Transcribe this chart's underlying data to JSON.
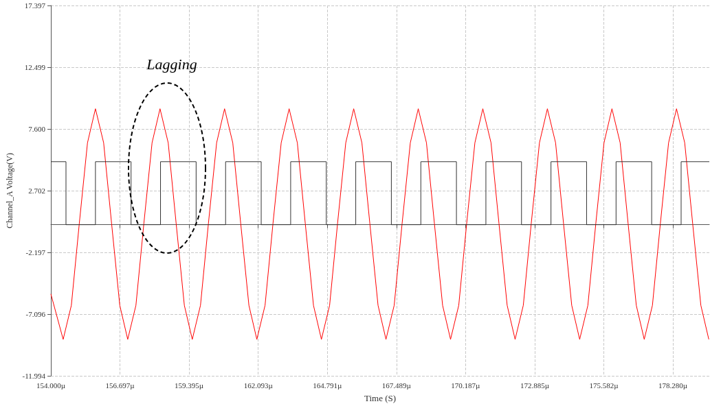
{
  "chart_data": {
    "type": "line",
    "xlabel": "Time (S)",
    "ylabel": "Channel_A Voltage(V)",
    "xlim": [
      154,
      179.7
    ],
    "ylim": [
      -11.994,
      17.397
    ],
    "xticks": [
      {
        "value": 154,
        "label": "154.000µ"
      },
      {
        "value": 156.697,
        "label": "156.697µ"
      },
      {
        "value": 159.395,
        "label": "159.395µ"
      },
      {
        "value": 162.093,
        "label": "162.093µ"
      },
      {
        "value": 164.791,
        "label": "164.791µ"
      },
      {
        "value": 167.489,
        "label": "167.489µ"
      },
      {
        "value": 170.187,
        "label": "170.187µ"
      },
      {
        "value": 172.885,
        "label": "172.885µ"
      },
      {
        "value": 175.582,
        "label": "175.582µ"
      },
      {
        "value": 178.28,
        "label": "178.280µ"
      }
    ],
    "yticks": [
      {
        "value": -11.994,
        "label": "-11.994"
      },
      {
        "value": -7.096,
        "label": "-7.096"
      },
      {
        "value": -2.197,
        "label": "-2.197"
      },
      {
        "value": 2.702,
        "label": "2.702"
      },
      {
        "value": 7.6,
        "label": "7.600"
      },
      {
        "value": 12.499,
        "label": "12.499"
      },
      {
        "value": 17.397,
        "label": "17.397"
      }
    ],
    "grid": true,
    "annotations": [
      "Lagging"
    ],
    "series": [
      {
        "color": "#ff0000",
        "x": [
          154.0,
          154.48,
          154.8,
          155.11,
          155.43,
          155.74,
          156.06,
          156.37,
          156.69,
          157.0,
          157.32,
          157.63,
          157.95,
          158.26,
          158.58,
          158.89,
          159.21,
          159.52,
          159.84,
          160.15,
          160.47,
          160.78,
          161.1,
          161.41,
          161.73,
          162.04,
          162.36,
          162.67,
          162.99,
          163.3,
          163.62,
          163.93,
          164.25,
          164.56,
          164.88,
          165.19,
          165.51,
          165.82,
          166.14,
          166.45,
          166.77,
          167.08,
          167.4,
          167.71,
          168.03,
          168.34,
          168.66,
          168.97,
          169.29,
          169.6,
          169.92,
          170.23,
          170.55,
          170.86,
          171.18,
          171.49,
          171.81,
          172.12,
          172.44,
          172.75,
          173.07,
          173.38,
          173.7,
          174.01,
          174.33,
          174.64,
          174.96,
          175.27,
          175.59,
          175.9,
          176.22,
          176.53,
          176.85,
          177.16,
          177.48,
          177.79,
          178.11,
          178.42,
          178.74,
          179.05,
          179.37,
          179.68
        ],
        "values": [
          -5.5,
          -9.1,
          -6.4,
          0.1,
          6.5,
          9.2,
          6.5,
          0.1,
          -6.4,
          -9.1,
          -6.4,
          0.1,
          6.5,
          9.2,
          6.5,
          0.1,
          -6.4,
          -9.1,
          -6.4,
          0.1,
          6.5,
          9.2,
          6.5,
          0.1,
          -6.4,
          -9.1,
          -6.4,
          0.1,
          6.5,
          9.2,
          6.5,
          0.1,
          -6.4,
          -9.1,
          -6.4,
          0.1,
          6.5,
          9.2,
          6.5,
          0.1,
          -6.4,
          -9.1,
          -6.4,
          0.1,
          6.5,
          9.2,
          6.5,
          0.1,
          -6.4,
          -9.1,
          -6.4,
          0.1,
          6.5,
          9.2,
          6.5,
          0.1,
          -6.4,
          -9.1,
          -6.4,
          0.1,
          6.5,
          9.2,
          6.5,
          0.1,
          -6.4,
          -9.1,
          -6.4,
          0.1,
          6.5,
          9.2,
          6.5,
          0.1,
          -6.4,
          -9.1,
          -6.4,
          0.1,
          6.5,
          9.2,
          6.5,
          0.1,
          -6.4,
          -9.1
        ]
      },
      {
        "type": "step",
        "color": "#333333",
        "x": [
          154.0,
          154.59,
          155.74,
          157.13,
          158.28,
          159.67,
          160.82,
          162.21,
          163.36,
          164.75,
          165.9,
          167.29,
          168.44,
          169.83,
          170.98,
          172.37,
          173.52,
          174.91,
          176.06,
          177.45,
          178.6,
          179.7
        ],
        "values": [
          5,
          0,
          5,
          0,
          5,
          0,
          5,
          0,
          5,
          0,
          5,
          0,
          5,
          0,
          5,
          0,
          5,
          0,
          5,
          0,
          5,
          5
        ]
      }
    ]
  }
}
